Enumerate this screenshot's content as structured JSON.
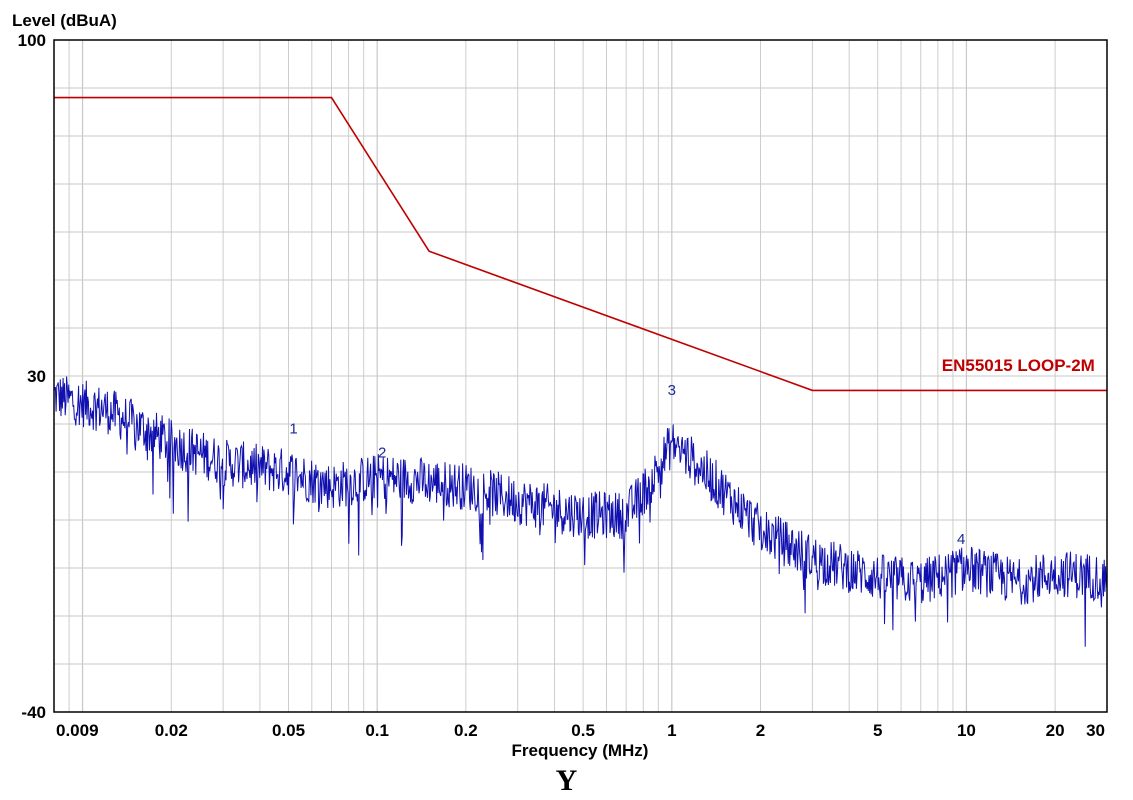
{
  "chart_data": {
    "type": "line",
    "xlabel": "Frequency (MHz)",
    "ylabel": "Level (dBuA)",
    "x_scale": "log",
    "xlim": [
      0.008,
      30
    ],
    "ylim": [
      -40,
      100
    ],
    "x_ticks": [
      0.009,
      0.02,
      0.05,
      0.1,
      0.2,
      0.5,
      1,
      2,
      5,
      10,
      20,
      30
    ],
    "x_tick_labels": [
      "0.009",
      "0.02",
      "0.05",
      "0.1",
      "0.2",
      "0.5",
      "1",
      "2",
      "5",
      "10",
      "20",
      "30"
    ],
    "y_ticks": [
      100,
      30,
      -40
    ],
    "y_tick_labels": [
      "100",
      "30",
      "-40"
    ],
    "grid": true,
    "series": [
      {
        "name": "EN55015 LOOP-2M",
        "color": "#c00000",
        "x": [
          0.008,
          0.07,
          0.15,
          3.0,
          30
        ],
        "y": [
          88,
          88,
          56,
          27,
          27
        ]
      },
      {
        "name": "",
        "color": "#1010b0",
        "x": [
          0.008,
          0.009,
          0.012,
          0.015,
          0.02,
          0.03,
          0.05,
          0.07,
          0.1,
          0.15,
          0.2,
          0.3,
          0.5,
          0.7,
          0.85,
          1.0,
          1.2,
          1.5,
          2.0,
          3.0,
          5.0,
          7.0,
          10.0,
          15.0,
          20.0,
          30.0
        ],
        "y": [
          26,
          25,
          23,
          20,
          16,
          12,
          10,
          7,
          9,
          8,
          7,
          4,
          1,
          1,
          8,
          16,
          12,
          6,
          -2,
          -8,
          -12,
          -13,
          -10,
          -13,
          -11,
          -12
        ]
      }
    ],
    "annotations": [
      {
        "text": "1",
        "x": 0.052,
        "y": 18
      },
      {
        "text": "2",
        "x": 0.104,
        "y": 13
      },
      {
        "text": "3",
        "x": 1.0,
        "y": 26
      },
      {
        "text": "4",
        "x": 9.6,
        "y": -5
      },
      {
        "text": "EN55015 LOOP-2M",
        "x": 15,
        "y": 31
      }
    ]
  },
  "caption": "Y",
  "colors": {
    "limit_line": "#c00000",
    "trace": "#1010b0",
    "grid": "#c8c8c8",
    "frame": "#000000"
  }
}
